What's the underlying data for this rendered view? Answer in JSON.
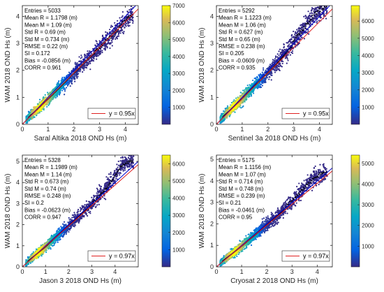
{
  "figure": {
    "panels": [
      {
        "id": "saral",
        "xlabel": "Saral Altika 2018 OND Hs (m)",
        "ylabel": "WAM  2018 OND  Hs (m)",
        "stats": [
          "Entries = 5033",
          "Mean R = 1.1798 (m)",
          "Mean M = 1.09 (m)",
          "Std R = 0.69 (m)",
          "Std M = 0.734 (m)",
          "RMSE = 0.22 (m)",
          "SI = 0.172",
          "Bias = -0.0856 (m)",
          "CORR = 0.961"
        ],
        "legend": "y = 0.95x"
      },
      {
        "id": "sentinel3a",
        "xlabel": "Sentinel 3a 2018 OND Hs (m)",
        "ylabel": "WAM  2018 OND  Hs (m)",
        "stats": [
          "Entries = 5292",
          "Mean R = 1.1223 (m)",
          "Mean M = 1.06 (m)",
          "Std R = 0.627 (m)",
          "Std M = 0.65 (m)",
          "RMSE = 0.238 (m)",
          "SI = 0.205",
          "Bias = -0.0609 (m)",
          "CORR = 0.935"
        ],
        "legend": "y = 0.95x"
      },
      {
        "id": "jason3",
        "xlabel": "Jason 3 2018 OND Hs (m)",
        "ylabel": "WAM  2018 OND  Hs (m)",
        "stats": [
          "Entries = 5328",
          "Mean R = 1.1989 (m)",
          "Mean M = 1.14 (m)",
          "Std R = 0.673 (m)",
          "Std M = 0.74 (m)",
          "RMSE = 0.248 (m)",
          "SI = 0.2",
          "Bias = -0.0623 (m)",
          "CORR = 0.947"
        ],
        "legend": "y = 0.97x"
      },
      {
        "id": "cryosat2",
        "xlabel": "Cryosat 2 2018 OND Hs (m)",
        "ylabel": "WAM  2018 OND  Hs (m)",
        "stats": [
          "Entries = 5175",
          "Mean R = 1.1156 (m)",
          "Mean M = 1.07 (m)",
          "Std R = 0.714 (m)",
          "Std M = 0.748 (m)",
          "RMSE = 0.239 (m)",
          "SI = 0.21",
          "Bias = -0.0461 (m)",
          "CORR = 0.95"
        ],
        "legend": "y = 0.97x"
      }
    ]
  },
  "chart_data": [
    {
      "type": "scatter",
      "xlabel": "Saral Altika 2018 OND Hs (m)",
      "ylabel": "WAM  2018 OND  Hs (m)",
      "xlim": [
        0,
        4.5
      ],
      "ylim": [
        0,
        4.4
      ],
      "xticks": [
        0,
        1,
        2,
        3,
        4
      ],
      "yticks": [
        0,
        1,
        2,
        3,
        4
      ],
      "series": [
        {
          "kind": "identity",
          "slope": 1.0,
          "color": "#0000cc"
        },
        {
          "name": "y = 0.95x",
          "kind": "fit",
          "slope": 0.95,
          "color": "#e02020"
        }
      ],
      "binned_mean": {
        "x": [
          0.3,
          0.5,
          0.7,
          0.9,
          1.1,
          1.3,
          1.5,
          1.7,
          1.9,
          2.1,
          2.3,
          2.5,
          2.7,
          2.9,
          3.1,
          3.3,
          3.5,
          3.7,
          3.9,
          4.1,
          4.3
        ],
        "y": [
          0.32,
          0.48,
          0.66,
          0.85,
          1.03,
          1.22,
          1.41,
          1.6,
          1.8,
          1.98,
          2.18,
          2.38,
          2.55,
          2.75,
          2.95,
          3.12,
          3.3,
          3.5,
          3.75,
          3.95,
          4.1
        ]
      },
      "scatter_spread": 0.45,
      "max_x": 4.3,
      "colorbar": {
        "min": 0,
        "max": 7000,
        "ticks": [
          1000,
          2000,
          3000,
          4000,
          5000,
          6000,
          7000
        ]
      },
      "grid": false
    },
    {
      "type": "scatter",
      "xlabel": "Sentinel 3a 2018 OND Hs (m)",
      "ylabel": "WAM  2018 OND  Hs (m)",
      "xlim": [
        0,
        4.5
      ],
      "ylim": [
        0,
        4.4
      ],
      "xticks": [
        0,
        1,
        2,
        3,
        4
      ],
      "yticks": [
        0,
        1,
        2,
        3,
        4
      ],
      "series": [
        {
          "kind": "identity",
          "slope": 1.0,
          "color": "#0000cc"
        },
        {
          "name": "y = 0.95x",
          "kind": "fit",
          "slope": 0.95,
          "color": "#e02020"
        }
      ],
      "binned_mean": {
        "x": [
          0.3,
          0.5,
          0.7,
          0.9,
          1.1,
          1.3,
          1.5,
          1.7,
          1.9,
          2.1,
          2.3,
          2.5,
          2.7,
          2.9,
          3.1,
          3.3,
          3.5,
          3.7,
          3.9,
          4.1,
          4.3
        ],
        "y": [
          0.33,
          0.5,
          0.68,
          0.86,
          1.05,
          1.25,
          1.44,
          1.62,
          1.82,
          2.0,
          2.2,
          2.42,
          2.65,
          2.9,
          3.2,
          3.45,
          3.7,
          3.95,
          4.15,
          4.3,
          4.3
        ]
      },
      "scatter_spread": 0.48,
      "max_x": 4.3,
      "colorbar": {
        "min": 0,
        "max": 6900,
        "ticks": [
          1000,
          2000,
          3000,
          4000,
          5000,
          6000
        ]
      },
      "grid": false
    },
    {
      "type": "scatter",
      "xlabel": "Jason 3 2018 OND Hs (m)",
      "ylabel": "WAM  2018 OND  Hs (m)",
      "xlim": [
        0,
        5.0
      ],
      "ylim": [
        0,
        5.3
      ],
      "xticks": [
        0,
        1,
        2,
        3,
        4
      ],
      "yticks": [
        0,
        1,
        2,
        3,
        4,
        5
      ],
      "series": [
        {
          "kind": "identity",
          "slope": 1.0,
          "color": "#0000cc"
        },
        {
          "name": "y = 0.97x",
          "kind": "fit",
          "slope": 0.97,
          "color": "#e02020"
        }
      ],
      "binned_mean": {
        "x": [
          0.3,
          0.5,
          0.7,
          0.9,
          1.1,
          1.3,
          1.5,
          1.7,
          1.9,
          2.1,
          2.3,
          2.5,
          2.7,
          2.9,
          3.1,
          3.3,
          3.5,
          3.7,
          3.9,
          4.1,
          4.3,
          4.5,
          4.7
        ],
        "y": [
          0.32,
          0.5,
          0.68,
          0.86,
          1.05,
          1.26,
          1.46,
          1.66,
          1.85,
          2.06,
          2.26,
          2.46,
          2.66,
          2.86,
          3.1,
          3.35,
          3.6,
          3.85,
          4.15,
          4.5,
          4.8,
          4.95,
          5.0
        ]
      },
      "scatter_spread": 0.5,
      "max_x": 4.8,
      "colorbar": {
        "min": 0,
        "max": 6500,
        "ticks": [
          1000,
          2000,
          3000,
          4000,
          5000,
          6000
        ]
      },
      "grid": false
    },
    {
      "type": "scatter",
      "xlabel": "Cryosat 2 2018 OND Hs (m)",
      "ylabel": "WAM  2018 OND  Hs (m)",
      "xlim": [
        0,
        4.6
      ],
      "ylim": [
        0,
        5.2
      ],
      "xticks": [
        0,
        1,
        2,
        3,
        4
      ],
      "yticks": [
        0,
        1,
        2,
        3,
        4,
        5
      ],
      "series": [
        {
          "kind": "identity",
          "slope": 1.0,
          "color": "#0000cc"
        },
        {
          "name": "y = 0.97x",
          "kind": "fit",
          "slope": 0.97,
          "color": "#e02020"
        }
      ],
      "binned_mean": {
        "x": [
          0.3,
          0.5,
          0.7,
          0.9,
          1.1,
          1.3,
          1.5,
          1.7,
          1.9,
          2.1,
          2.3,
          2.5,
          2.7,
          2.9,
          3.1,
          3.3,
          3.5,
          3.7,
          3.9,
          4.1,
          4.3
        ],
        "y": [
          0.32,
          0.5,
          0.68,
          0.87,
          1.06,
          1.26,
          1.45,
          1.65,
          1.85,
          2.05,
          2.25,
          2.45,
          2.7,
          2.95,
          3.2,
          3.45,
          3.7,
          3.95,
          4.15,
          4.3,
          4.35
        ]
      },
      "scatter_spread": 0.48,
      "max_x": 4.4,
      "colorbar": {
        "min": 0,
        "max": 5400,
        "ticks": [
          1000,
          2000,
          3000,
          4000,
          5000
        ]
      },
      "grid": false
    }
  ]
}
